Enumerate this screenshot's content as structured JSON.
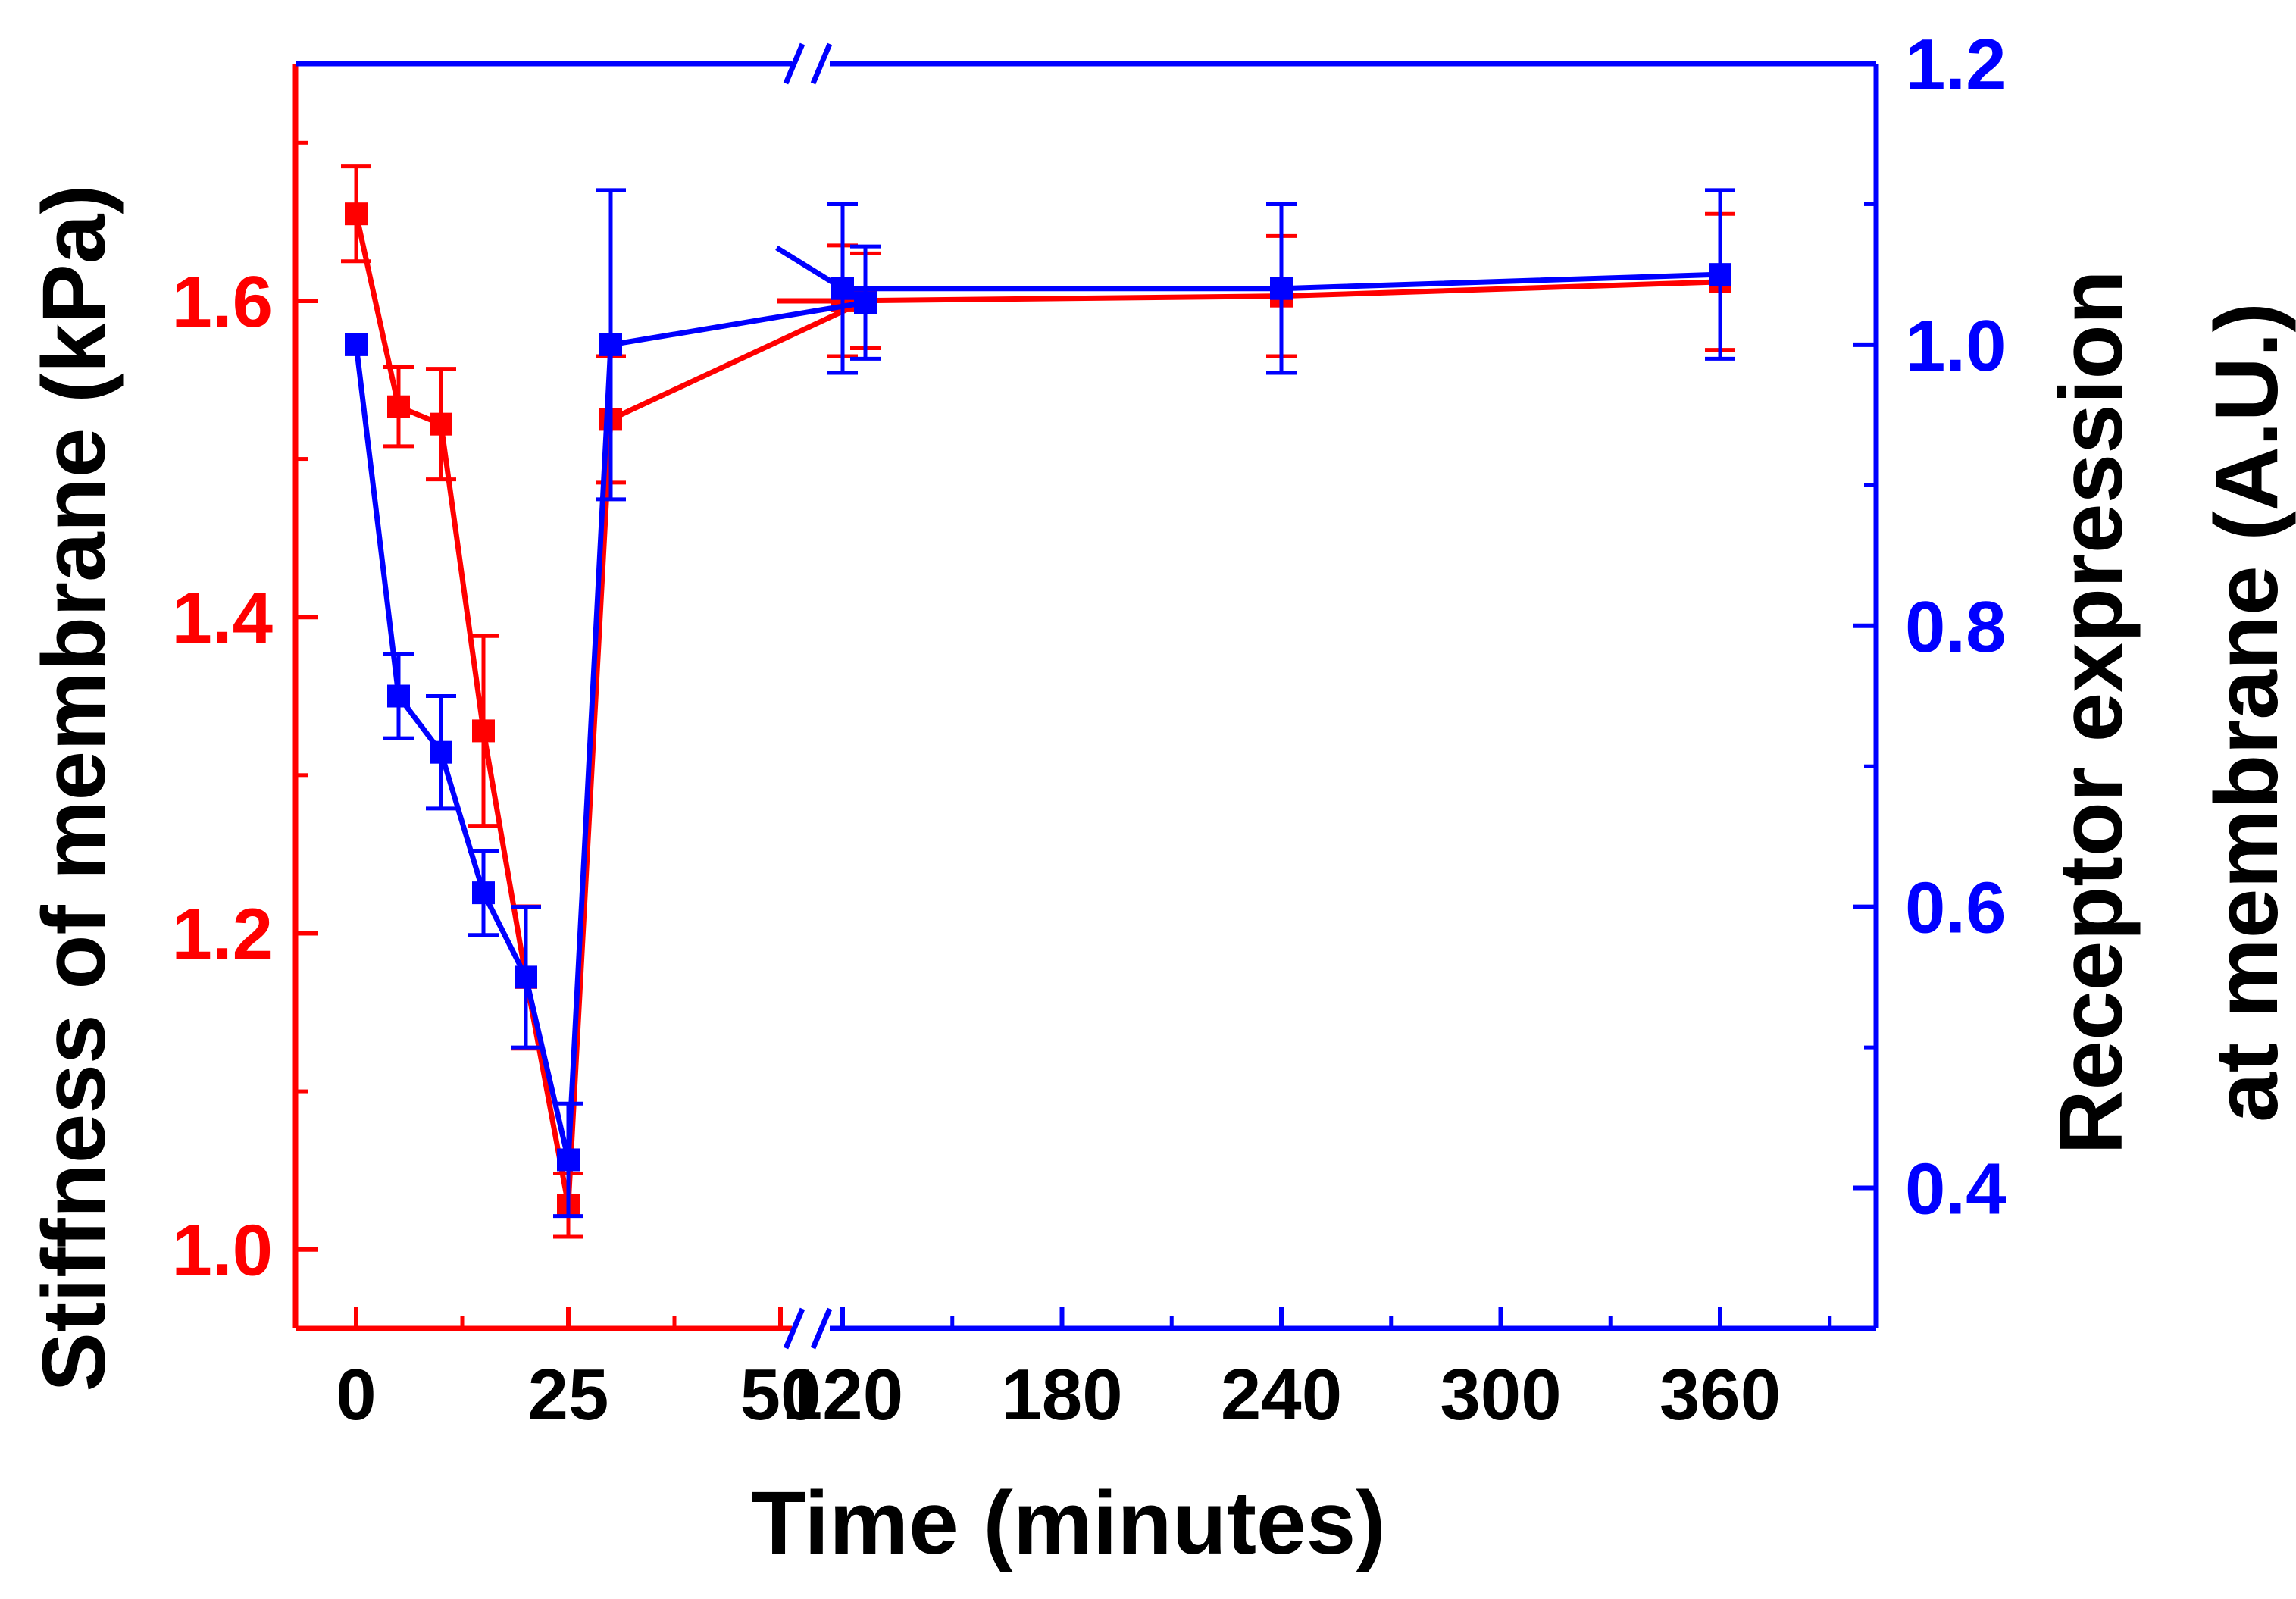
{
  "chart_data": {
    "type": "line",
    "xlabel": "Time (minutes)",
    "ylabel_left": "Stiffness of membrane (kPa)",
    "ylabel_right_line1": "Receptor expression",
    "ylabel_right_line2": "at membrane (A.U.)",
    "x_axis_break": {
      "between": [
        60,
        120
      ]
    },
    "x_ticks": [
      0,
      25,
      50,
      120,
      180,
      240,
      300,
      360
    ],
    "x_tick_labels": [
      "0",
      "25",
      "50",
      "120",
      "180",
      "240",
      "300",
      "360"
    ],
    "y_left": {
      "range": [
        0.95,
        1.75
      ],
      "ticks": [
        1.0,
        1.2,
        1.4,
        1.6
      ],
      "tick_labels": [
        "1.0",
        "1.2",
        "1.4",
        "1.6"
      ]
    },
    "y_right": {
      "range": [
        0.3,
        1.2
      ],
      "ticks": [
        0.4,
        0.6,
        0.8,
        1.0,
        1.2
      ],
      "tick_labels": [
        "0.4",
        "0.6",
        "0.8",
        "1.0",
        "1.2"
      ]
    },
    "series": [
      {
        "axis": "left",
        "color": "#ff0000",
        "x": [
          0,
          5,
          10,
          15,
          20,
          25,
          30,
          60,
          120,
          240,
          360
        ],
        "y": [
          1.655,
          1.533,
          1.522,
          1.328,
          1.172,
          1.028,
          1.525,
          1.6,
          1.6,
          1.603,
          1.612
        ],
        "err": [
          0.03,
          0.025,
          0.035,
          0.06,
          0.045,
          0.02,
          0.04,
          0.03,
          0.035,
          0.038,
          0.043
        ]
      },
      {
        "axis": "right",
        "color": "#0000ff",
        "x": [
          0,
          5,
          10,
          15,
          20,
          25,
          30,
          60,
          120,
          240,
          360
        ],
        "y": [
          1.0,
          0.75,
          0.71,
          0.61,
          0.55,
          0.42,
          1.0,
          1.03,
          1.04,
          1.04,
          1.05
        ],
        "err": [
          0.0,
          0.03,
          0.04,
          0.03,
          0.05,
          0.04,
          0.11,
          0.04,
          0.06,
          0.06,
          0.06
        ]
      }
    ]
  }
}
